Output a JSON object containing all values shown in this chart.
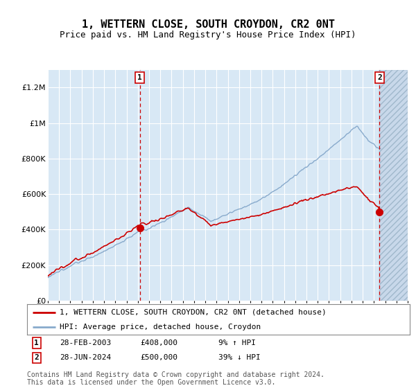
{
  "title": "1, WETTERN CLOSE, SOUTH CROYDON, CR2 0NT",
  "subtitle": "Price paid vs. HM Land Registry's House Price Index (HPI)",
  "ylim": [
    0,
    1300000
  ],
  "yticks": [
    0,
    200000,
    400000,
    600000,
    800000,
    1000000,
    1200000
  ],
  "ytick_labels": [
    "£0",
    "£200K",
    "£400K",
    "£600K",
    "£800K",
    "£1M",
    "£1.2M"
  ],
  "xmin": 1995,
  "xmax": 2027,
  "bg_color": "#d8e8f5",
  "grid_color": "#ffffff",
  "hatch_color": "#c0d0e0",
  "sale1_x": 2003.17,
  "sale1_y": 408000,
  "sale1_label": "1",
  "sale1_date": "28-FEB-2003",
  "sale1_price": "£408,000",
  "sale1_hpi": "9% ↑ HPI",
  "sale2_x": 2024.5,
  "sale2_y": 500000,
  "sale2_label": "2",
  "sale2_date": "28-JUN-2024",
  "sale2_price": "£500,000",
  "sale2_hpi": "39% ↓ HPI",
  "legend_line1": "1, WETTERN CLOSE, SOUTH CROYDON, CR2 0NT (detached house)",
  "legend_line2": "HPI: Average price, detached house, Croydon",
  "footer": "Contains HM Land Registry data © Crown copyright and database right 2024.\nThis data is licensed under the Open Government Licence v3.0.",
  "line_color_red": "#cc0000",
  "line_color_blue": "#88aacc",
  "vline_color": "#cc0000",
  "title_fontsize": 11,
  "subtitle_fontsize": 9,
  "tick_fontsize": 8,
  "legend_fontsize": 8,
  "footer_fontsize": 7
}
